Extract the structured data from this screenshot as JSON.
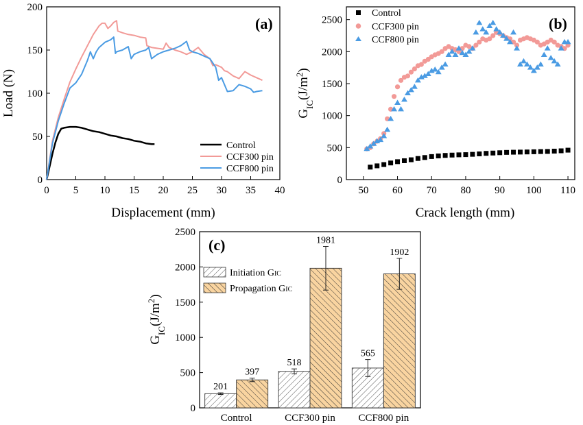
{
  "colors": {
    "control": "#000000",
    "ccf300": "#f29a97",
    "ccf800": "#4a9be3",
    "initiation_fill": "#ffffff",
    "propagation_fill": "#f9d4a0"
  },
  "chart_data": [
    {
      "type": "line",
      "panel_label": "(a)",
      "xlabel": "Displacement (mm)",
      "ylabel": "Load (N)",
      "xlim": [
        0,
        40
      ],
      "ylim": [
        0,
        200
      ],
      "x_ticks": [
        "0",
        "5",
        "10",
        "15",
        "20",
        "25",
        "30",
        "35",
        "40"
      ],
      "y_ticks": [
        "0",
        "50",
        "100",
        "150",
        "200"
      ],
      "legend_position": "bottom-right",
      "series": [
        {
          "name": "Control",
          "color": "#000000",
          "x": [
            0,
            0.5,
            1,
            1.5,
            2,
            2.5,
            3,
            4,
            5,
            6,
            7,
            8,
            9,
            10,
            11,
            12,
            13,
            14,
            15,
            16,
            17,
            18,
            18.5
          ],
          "y": [
            0,
            15,
            30,
            43,
            53,
            59,
            60,
            61,
            61,
            60,
            58,
            56,
            55,
            53,
            51,
            50,
            48,
            47,
            45,
            44,
            42,
            41,
            41
          ]
        },
        {
          "name": "CCF300 pin",
          "color": "#f29a97",
          "x": [
            0,
            1,
            2,
            3,
            4,
            5,
            6,
            7,
            8,
            9,
            9.5,
            10,
            10.5,
            11,
            11.5,
            12,
            12.2,
            13,
            14,
            15,
            16,
            17,
            17.2,
            18,
            19,
            20,
            20.5,
            21,
            22,
            23,
            24,
            25,
            26,
            27,
            28,
            28.5,
            29,
            30,
            30.5,
            31,
            32,
            33,
            34,
            35,
            36,
            37
          ],
          "y": [
            0,
            45,
            72,
            93,
            113,
            128,
            142,
            155,
            168,
            178,
            181,
            181,
            175,
            178,
            182,
            184,
            172,
            170,
            168,
            167,
            165,
            164,
            155,
            153,
            152,
            151,
            158,
            153,
            150,
            148,
            145,
            148,
            153,
            145,
            140,
            132,
            133,
            130,
            126,
            125,
            120,
            117,
            125,
            121,
            118,
            115
          ]
        },
        {
          "name": "CCF800 pin",
          "color": "#4a9be3",
          "x": [
            0,
            1,
            2,
            3,
            4,
            5,
            6,
            7,
            7.5,
            8,
            8.5,
            9,
            10,
            11,
            11.5,
            11.8,
            12,
            13,
            14,
            14.5,
            15,
            16,
            17,
            17.5,
            18,
            19,
            20,
            21,
            22,
            23,
            24,
            24.5,
            25,
            26,
            27,
            28,
            29,
            29.5,
            30,
            31,
            32,
            33,
            34,
            35,
            35.5,
            36,
            37
          ],
          "y": [
            0,
            42,
            68,
            88,
            106,
            112,
            122,
            138,
            148,
            140,
            148,
            153,
            159,
            162,
            165,
            146,
            148,
            150,
            154,
            140,
            145,
            148,
            150,
            153,
            140,
            145,
            148,
            150,
            152,
            155,
            160,
            150,
            148,
            146,
            143,
            140,
            130,
            115,
            118,
            102,
            103,
            110,
            108,
            105,
            101,
            102,
            103
          ]
        }
      ]
    },
    {
      "type": "scatter",
      "panel_label": "(b)",
      "xlabel": "Crack length (mm)",
      "ylabel_main": "G",
      "ylabel_sub": "IC",
      "ylabel_unit": "(J/m",
      "ylabel_sup": "2",
      "ylabel_close": ")",
      "xlim": [
        45,
        112
      ],
      "ylim": [
        0,
        2700
      ],
      "x_ticks": [
        "50",
        "60",
        "70",
        "80",
        "90",
        "100",
        "110"
      ],
      "x_tick_values": [
        50,
        60,
        70,
        80,
        90,
        100,
        110
      ],
      "y_ticks": [
        "0",
        "500",
        "1000",
        "1500",
        "2000",
        "2500"
      ],
      "y_tick_values": [
        0,
        500,
        1000,
        1500,
        2000,
        2500
      ],
      "legend_position": "top-left",
      "series": [
        {
          "name": "Control",
          "marker": "square",
          "color": "#000000",
          "x": [
            52,
            54,
            56,
            58,
            60,
            62,
            64,
            66,
            68,
            70,
            72,
            74,
            76,
            78,
            80,
            82,
            84,
            86,
            88,
            90,
            92,
            94,
            96,
            98,
            100,
            102,
            104,
            106,
            108,
            110
          ],
          "y": [
            195,
            215,
            235,
            260,
            280,
            295,
            310,
            330,
            345,
            360,
            370,
            378,
            383,
            387,
            390,
            395,
            402,
            410,
            415,
            420,
            425,
            428,
            430,
            432,
            435,
            438,
            440,
            445,
            450,
            460
          ]
        },
        {
          "name": "CCF300 pin",
          "marker": "circle",
          "color": "#f29a97",
          "x": [
            51,
            52,
            53,
            54,
            55,
            56,
            57,
            58,
            59,
            60,
            61,
            62,
            63,
            64,
            65,
            66,
            67,
            68,
            69,
            70,
            71,
            72,
            73,
            74,
            75,
            76,
            77,
            78,
            79,
            80,
            81,
            82,
            83,
            84,
            85,
            86,
            87,
            88,
            89,
            90,
            91,
            92,
            93,
            94,
            95,
            96,
            97,
            98,
            99,
            100,
            101,
            102,
            103,
            104,
            105,
            106,
            107,
            108,
            109,
            110
          ],
          "y": [
            480,
            500,
            560,
            600,
            640,
            720,
            950,
            1100,
            1300,
            1450,
            1550,
            1600,
            1620,
            1680,
            1730,
            1780,
            1800,
            1850,
            1880,
            1920,
            1950,
            1970,
            2000,
            2050,
            2080,
            2050,
            2030,
            2000,
            2050,
            2100,
            2080,
            2050,
            2100,
            2150,
            2200,
            2180,
            2200,
            2250,
            2300,
            2280,
            2250,
            2220,
            2200,
            2150,
            2100,
            2180,
            2200,
            2220,
            2200,
            2180,
            2150,
            2100,
            2120,
            2150,
            2180,
            2150,
            2100,
            2080,
            2050,
            2100
          ]
        },
        {
          "name": "CCF800 pin",
          "marker": "triangle",
          "color": "#4a9be3",
          "x": [
            51,
            52,
            53,
            54,
            55,
            56,
            57,
            58,
            59,
            60,
            61,
            62,
            63,
            64,
            65,
            66,
            67,
            68,
            69,
            70,
            71,
            72,
            73,
            74,
            75,
            76,
            77,
            78,
            79,
            80,
            81,
            82,
            83,
            84,
            85,
            86,
            87,
            88,
            89,
            90,
            91,
            92,
            93,
            94,
            95,
            96,
            97,
            98,
            99,
            100,
            101,
            102,
            103,
            104,
            105,
            106,
            107,
            108,
            109,
            110
          ],
          "y": [
            480,
            520,
            560,
            600,
            620,
            680,
            780,
            950,
            1100,
            1200,
            1100,
            1250,
            1350,
            1400,
            1450,
            1550,
            1600,
            1620,
            1650,
            1700,
            1720,
            1680,
            1750,
            1800,
            1950,
            2000,
            1950,
            2050,
            1980,
            1950,
            2000,
            2050,
            2300,
            2450,
            2350,
            2300,
            2400,
            2450,
            2350,
            2300,
            2250,
            2200,
            2150,
            2300,
            2050,
            1800,
            1850,
            1800,
            1750,
            1700,
            1750,
            1800,
            1950,
            2050,
            1900,
            1850,
            1800,
            2050,
            2150,
            2150
          ]
        }
      ]
    },
    {
      "type": "bar",
      "panel_label": "(c)",
      "ylabel_main": "G",
      "ylabel_sub": "IC",
      "ylabel_unit": "(J/m",
      "ylabel_sup": "2",
      "ylabel_close": ")",
      "ylim": [
        0,
        2500
      ],
      "y_ticks": [
        "0",
        "500",
        "1000",
        "1500",
        "2000",
        "2500"
      ],
      "categories": [
        "Control",
        "CCF300 pin",
        "CCF800 pin"
      ],
      "legend_position": "top-left",
      "series": [
        {
          "name": "Initiation G",
          "name_sub": "IC",
          "pattern": "hatch-grey",
          "values": [
            201,
            518,
            565
          ],
          "errors": [
            12,
            35,
            120
          ],
          "labels": [
            "201",
            "518",
            "565"
          ]
        },
        {
          "name": "Propagation G",
          "name_sub": "IC",
          "pattern": "hatch-orange",
          "values": [
            397,
            1981,
            1902
          ],
          "errors": [
            25,
            310,
            220
          ],
          "labels": [
            "397",
            "1981",
            "1902"
          ]
        }
      ]
    }
  ]
}
